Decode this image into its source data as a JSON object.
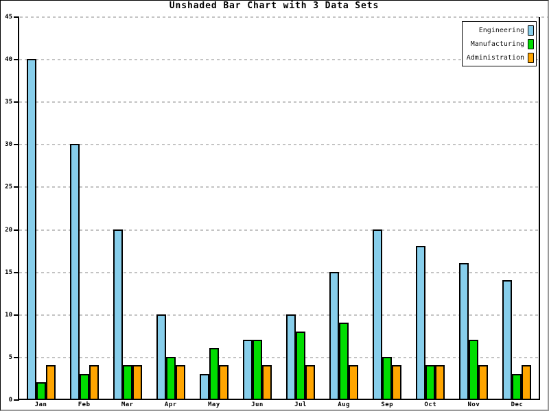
{
  "chart_data": {
    "type": "bar",
    "title": "Unshaded Bar Chart with 3 Data Sets",
    "categories": [
      "Jan",
      "Feb",
      "Mar",
      "Apr",
      "May",
      "Jun",
      "Jul",
      "Aug",
      "Sep",
      "Oct",
      "Nov",
      "Dec"
    ],
    "series": [
      {
        "name": "Engineering",
        "color": "#87CEEB",
        "values": [
          40,
          30,
          20,
          10,
          3,
          7,
          10,
          15,
          20,
          18,
          16,
          14
        ]
      },
      {
        "name": "Manufacturing",
        "color": "#00DD00",
        "values": [
          2,
          3,
          4,
          5,
          6,
          7,
          8,
          9,
          5,
          4,
          7,
          3
        ]
      },
      {
        "name": "Administration",
        "color": "#FFA500",
        "values": [
          4,
          4,
          4,
          4,
          4,
          4,
          4,
          4,
          4,
          4,
          4,
          4
        ]
      }
    ],
    "xlabel": "",
    "ylabel": "",
    "ylim": [
      0,
      45
    ],
    "yticks": [
      0,
      5,
      10,
      15,
      20,
      25,
      30,
      35,
      40,
      45
    ],
    "grid": "horizontal-dashed",
    "legend_position": "top-right",
    "bar_outline": "black, unshaded flat fills"
  },
  "ui_colors": {
    "background": "#ffffff",
    "axis": "#000000",
    "gridline": "#c3c3c3",
    "outer_border_dark": "#000000",
    "outer_border_shadow": "#999999"
  }
}
